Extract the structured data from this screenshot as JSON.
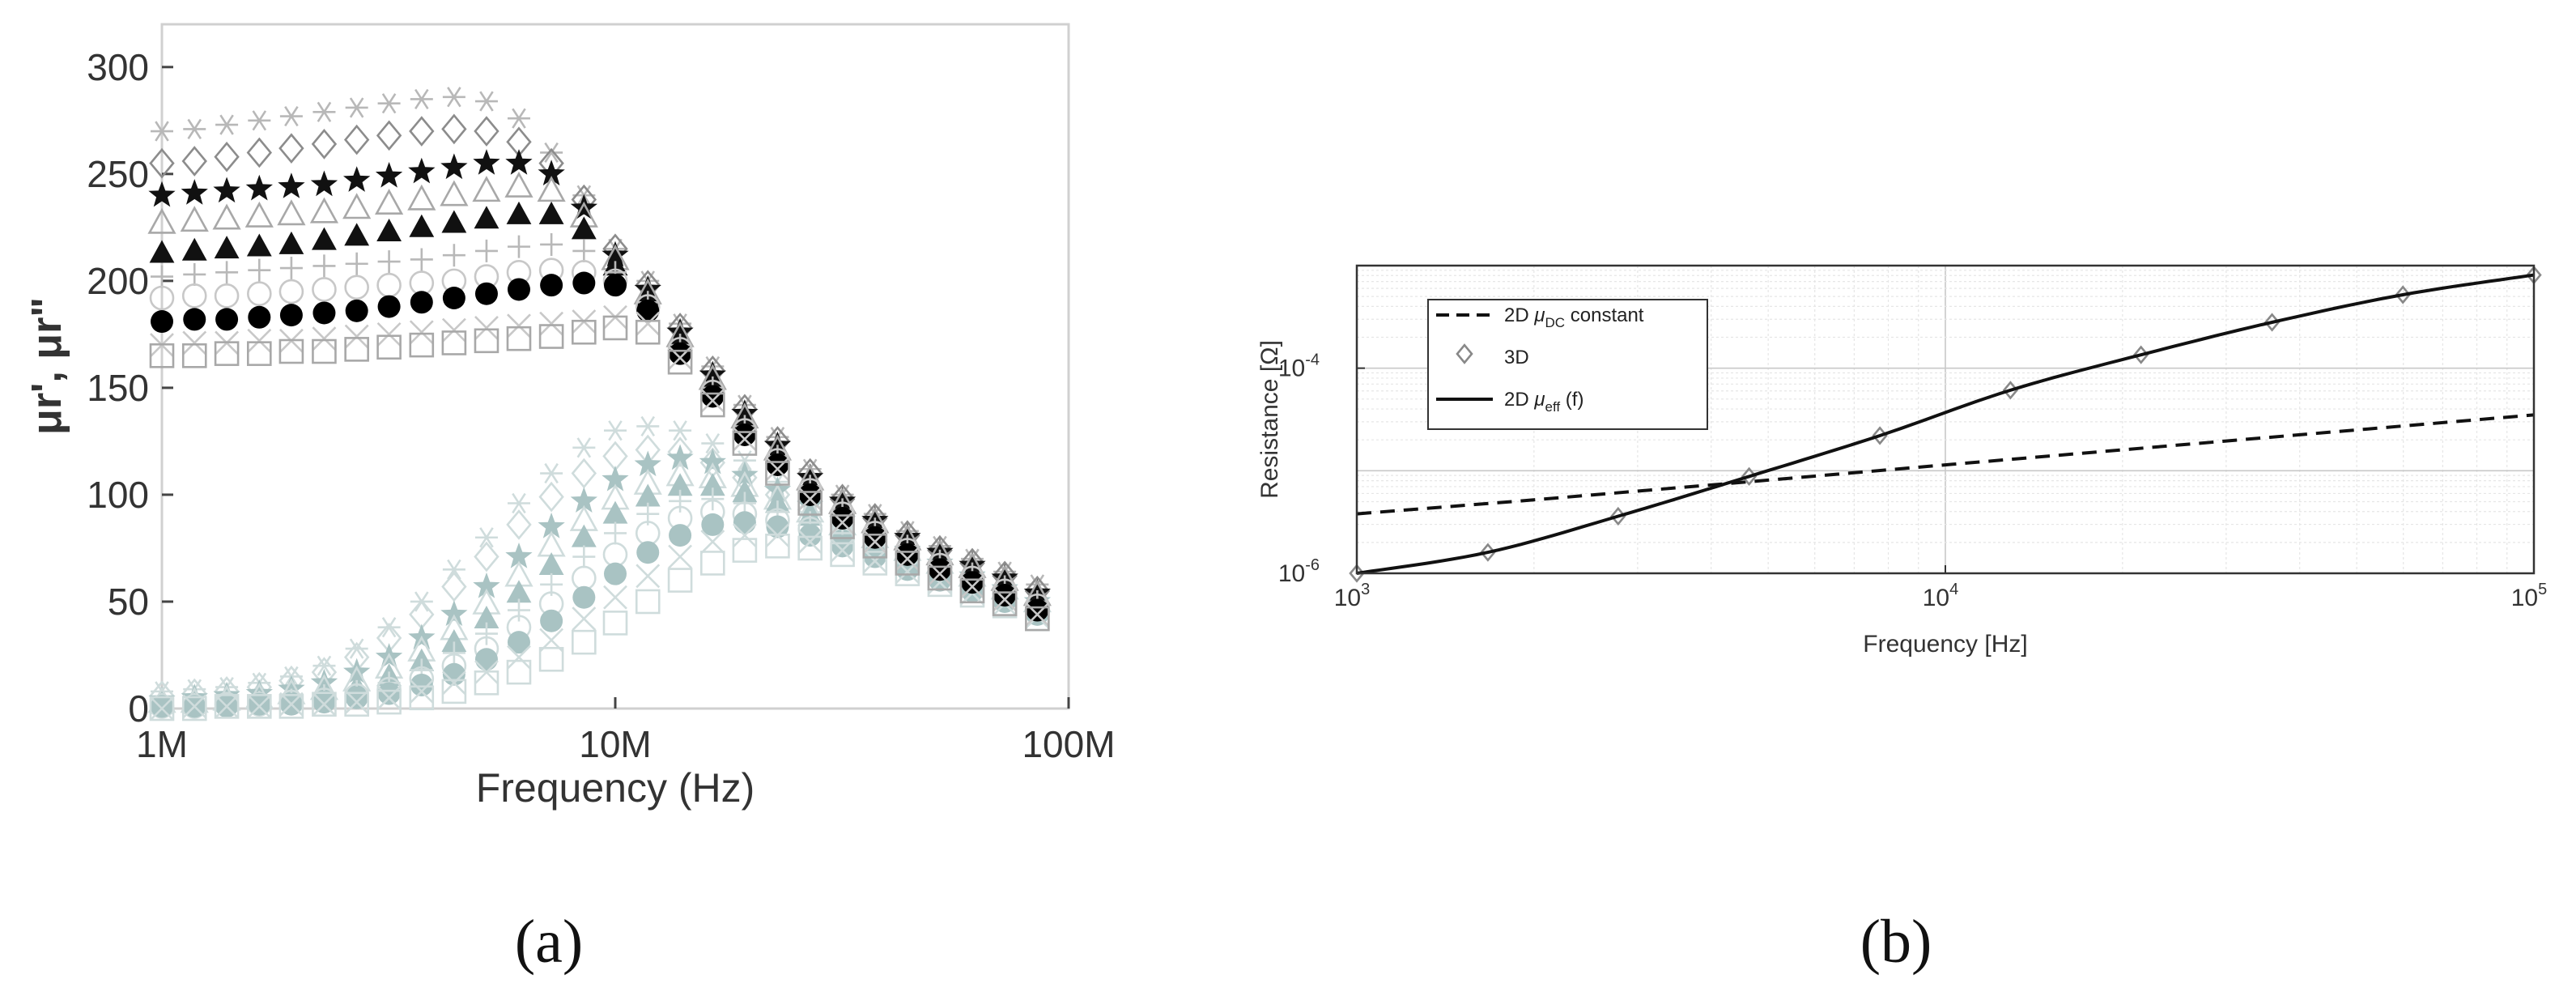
{
  "chart_data": [
    {
      "type": "scatter",
      "panel_label": "(a)",
      "xlabel": "Frequency (Hz)",
      "ylabel": "μr', μr\"",
      "xscale": "log",
      "xlim": [
        1000000,
        100000000
      ],
      "ylim": [
        0,
        320
      ],
      "x_ticks": [
        1000000,
        10000000,
        100000000
      ],
      "x_tick_labels": [
        "1M",
        "10M",
        "100M"
      ],
      "y_ticks": [
        0,
        50,
        100,
        150,
        200,
        250,
        300
      ],
      "y_tick_labels": [
        "0",
        "50",
        "100",
        "150",
        "200",
        "250",
        "300"
      ],
      "grid": false,
      "x": [
        1000000,
        1180000,
        1390000,
        1640000,
        1930000,
        2280000,
        2690000,
        3170000,
        3740000,
        4410000,
        5200000,
        6130000,
        7230000,
        8530000,
        10000000,
        11800000,
        13900000,
        16400000,
        19300000,
        22800000,
        26900000,
        31700000,
        37400000,
        44100000,
        52000000,
        61300000,
        72300000,
        85300000
      ],
      "series": [
        {
          "part": "real",
          "marker": "asterisk",
          "color": "#b8b8b8",
          "values": [
            270,
            271,
            273,
            275,
            277,
            279,
            281,
            283,
            285,
            286,
            284,
            276,
            260,
            240,
            215,
            200,
            180,
            160,
            142,
            127,
            112,
            100,
            91,
            83,
            76,
            70,
            64,
            58
          ]
        },
        {
          "part": "real",
          "marker": "diamond-open",
          "color": "#8c8c8c",
          "values": [
            255,
            256,
            258,
            260,
            262,
            264,
            266,
            268,
            270,
            271,
            270,
            265,
            255,
            238,
            215,
            198,
            178,
            158,
            140,
            125,
            110,
            98,
            89,
            81,
            74,
            68,
            62,
            55
          ]
        },
        {
          "part": "real",
          "marker": "star-filled",
          "color": "#111111",
          "values": [
            240,
            241,
            242,
            243,
            244,
            245,
            247,
            249,
            251,
            253,
            255,
            255,
            250,
            234,
            212,
            196,
            176,
            156,
            138,
            123,
            108,
            97,
            88,
            80,
            73,
            67,
            61,
            54
          ]
        },
        {
          "part": "real",
          "marker": "triangle-open",
          "color": "#a8a8a8",
          "values": [
            227,
            228,
            229,
            230,
            231,
            232,
            234,
            236,
            238,
            240,
            242,
            244,
            242,
            230,
            210,
            194,
            174,
            154,
            136,
            121,
            107,
            96,
            87,
            79,
            72,
            66,
            60,
            53
          ]
        },
        {
          "part": "real",
          "marker": "triangle-filled",
          "color": "#111111",
          "values": [
            213,
            214,
            215,
            216,
            217,
            219,
            221,
            223,
            225,
            227,
            229,
            231,
            231,
            224,
            207,
            192,
            172,
            152,
            134,
            119,
            105,
            94,
            85,
            77,
            70,
            64,
            58,
            51
          ]
        },
        {
          "part": "real",
          "marker": "plus",
          "color": "#b8b8b8",
          "values": [
            202,
            203,
            204,
            205,
            206,
            207,
            208,
            209,
            210,
            212,
            214,
            216,
            217,
            214,
            204,
            190,
            170,
            150,
            132,
            118,
            104,
            93,
            84,
            76,
            69,
            63,
            57,
            50
          ]
        },
        {
          "part": "real",
          "marker": "circle-open",
          "color": "#c8c8c8",
          "values": [
            192,
            193,
            193,
            194,
            195,
            196,
            197,
            198,
            199,
            200,
            202,
            204,
            205,
            204,
            200,
            188,
            168,
            148,
            130,
            116,
            102,
            91,
            82,
            74,
            67,
            61,
            55,
            48
          ]
        },
        {
          "part": "real",
          "marker": "circle-filled",
          "color": "#000000",
          "values": [
            181,
            182,
            182,
            183,
            184,
            185,
            186,
            188,
            190,
            192,
            194,
            196,
            198,
            199,
            198,
            186,
            166,
            146,
            128,
            114,
            100,
            89,
            80,
            72,
            65,
            59,
            53,
            46
          ]
        },
        {
          "part": "real",
          "marker": "x",
          "color": "#c8c8c8",
          "values": [
            170,
            171,
            171,
            172,
            172,
            173,
            174,
            175,
            176,
            177,
            178,
            179,
            180,
            181,
            183,
            180,
            164,
            144,
            126,
            112,
            98,
            87,
            78,
            70,
            63,
            57,
            51,
            44
          ]
        },
        {
          "part": "real",
          "marker": "square-open",
          "color": "#a8a8a8",
          "values": [
            165,
            165,
            166,
            166,
            167,
            167,
            168,
            169,
            170,
            171,
            172,
            173,
            174,
            176,
            178,
            176,
            162,
            142,
            124,
            110,
            96,
            85,
            76,
            68,
            61,
            55,
            49,
            42
          ]
        },
        {
          "part": "imaginary",
          "marker": "asterisk",
          "color": "#cfdcdc",
          "values": [
            8,
            9,
            10,
            12,
            15,
            20,
            28,
            38,
            50,
            65,
            80,
            96,
            110,
            122,
            130,
            132,
            130,
            124,
            116,
            106,
            98,
            90,
            82,
            75,
            68,
            62,
            56,
            50
          ]
        },
        {
          "part": "imaginary",
          "marker": "diamond-open",
          "color": "#cfdcdc",
          "values": [
            6,
            7,
            8,
            10,
            13,
            17,
            24,
            33,
            44,
            57,
            71,
            86,
            99,
            110,
            118,
            121,
            120,
            115,
            108,
            100,
            93,
            86,
            79,
            72,
            66,
            60,
            54,
            48
          ]
        },
        {
          "part": "imaginary",
          "marker": "star-filled",
          "color": "#a9c3c3",
          "values": [
            4,
            5,
            6,
            7,
            9,
            12,
            17,
            24,
            33,
            44,
            57,
            71,
            85,
            97,
            107,
            114,
            117,
            115,
            109,
            102,
            95,
            88,
            81,
            74,
            68,
            62,
            56,
            50
          ]
        },
        {
          "part": "imaginary",
          "marker": "triangle-open",
          "color": "#cfdcdc",
          "values": [
            3,
            3,
            4,
            5,
            7,
            9,
            13,
            19,
            27,
            37,
            49,
            62,
            76,
            88,
            98,
            105,
            109,
            108,
            104,
            98,
            92,
            86,
            80,
            74,
            68,
            62,
            56,
            50
          ]
        },
        {
          "part": "imaginary",
          "marker": "triangle-filled",
          "color": "#a9c3c3",
          "values": [
            2,
            2,
            3,
            4,
            5,
            7,
            10,
            15,
            22,
            31,
            42,
            54,
            67,
            80,
            91,
            99,
            104,
            104,
            101,
            96,
            90,
            84,
            78,
            72,
            66,
            60,
            54,
            48
          ]
        },
        {
          "part": "imaginary",
          "marker": "plus",
          "color": "#cfdcdc",
          "values": [
            2,
            2,
            2,
            3,
            4,
            6,
            8,
            12,
            18,
            26,
            35,
            46,
            58,
            71,
            82,
            91,
            97,
            98,
            96,
            92,
            87,
            82,
            76,
            70,
            64,
            58,
            53,
            47
          ]
        },
        {
          "part": "imaginary",
          "marker": "circle-open",
          "color": "#cfdcdc",
          "values": [
            1,
            1,
            2,
            2,
            3,
            4,
            6,
            9,
            14,
            20,
            28,
            38,
            49,
            61,
            72,
            82,
            89,
            92,
            91,
            88,
            84,
            79,
            73,
            67,
            62,
            56,
            51,
            45
          ]
        },
        {
          "part": "imaginary",
          "marker": "circle-filled",
          "color": "#a9c3c3",
          "values": [
            1,
            1,
            1,
            2,
            2,
            3,
            5,
            7,
            11,
            16,
            23,
            31,
            41,
            52,
            63,
            73,
            81,
            86,
            87,
            85,
            81,
            76,
            71,
            65,
            60,
            55,
            50,
            44
          ]
        },
        {
          "part": "imaginary",
          "marker": "x",
          "color": "#cfdcdc",
          "values": [
            0,
            1,
            1,
            1,
            2,
            2,
            3,
            5,
            8,
            12,
            17,
            24,
            32,
            42,
            52,
            62,
            71,
            78,
            81,
            81,
            78,
            74,
            69,
            64,
            59,
            54,
            49,
            43
          ]
        },
        {
          "part": "imaginary",
          "marker": "square-open",
          "color": "#cfdcdc",
          "values": [
            0,
            0,
            1,
            1,
            1,
            2,
            2,
            3,
            5,
            8,
            12,
            17,
            23,
            31,
            40,
            50,
            60,
            68,
            74,
            76,
            75,
            72,
            68,
            63,
            58,
            53,
            48,
            42
          ]
        }
      ]
    },
    {
      "type": "line",
      "panel_label": "(b)",
      "xlabel": "Frequency [Hz]",
      "ylabel": "Resistance [Ω]",
      "xscale": "log",
      "yscale": "log",
      "xlim": [
        1000,
        100000
      ],
      "ylim": [
        1e-06,
        0.001
      ],
      "x_ticks": [
        1000,
        10000,
        100000
      ],
      "x_tick_labels": [
        {
          "base": "10",
          "exp": "3"
        },
        {
          "base": "10",
          "exp": "4"
        },
        {
          "base": "10",
          "exp": "5"
        }
      ],
      "y_ticks": [
        1e-06,
        0.0001
      ],
      "y_tick_labels": [
        {
          "base": "10",
          "exp": "-6"
        },
        {
          "base": "10",
          "exp": "-4"
        }
      ],
      "grid": true,
      "legend_position": "top-left",
      "series": [
        {
          "name": "2D μDC constant",
          "legend_parts": [
            "2D ",
            "μ",
            "DC",
            " constant"
          ],
          "style": "dashed",
          "color": "#111111",
          "x": [
            1000,
            2000,
            5000,
            10000,
            20000,
            50000,
            100000
          ],
          "values": [
            3.8e-06,
            5.2e-06,
            8.1e-06,
            1.14e-05,
            1.6e-05,
            2.5e-05,
            3.5e-05
          ]
        },
        {
          "name": "3D",
          "legend_parts": [
            "3D"
          ],
          "style": "diamond-markers",
          "color": "#888888",
          "x": [
            1000,
            1670,
            2780,
            4640,
            7740,
            12900,
            21500,
            35900,
            59900,
            100000
          ],
          "values": [
            1e-06,
            1.6e-06,
            3.6e-06,
            8.8e-06,
            2.2e-05,
            6.1e-05,
            0.000135,
            0.00028,
            0.00052,
            0.00081
          ]
        },
        {
          "name": "2D μeff (f)",
          "legend_parts": [
            "2D ",
            "μ",
            "eff",
            " (f)"
          ],
          "style": "solid",
          "color": "#111111",
          "x": [
            1000,
            1670,
            2780,
            4640,
            7740,
            12900,
            21500,
            35900,
            59900,
            100000
          ],
          "values": [
            1e-06,
            1.6e-06,
            3.6e-06,
            8.8e-06,
            2.2e-05,
            6.1e-05,
            0.000135,
            0.00028,
            0.00052,
            0.00081
          ]
        }
      ]
    }
  ]
}
